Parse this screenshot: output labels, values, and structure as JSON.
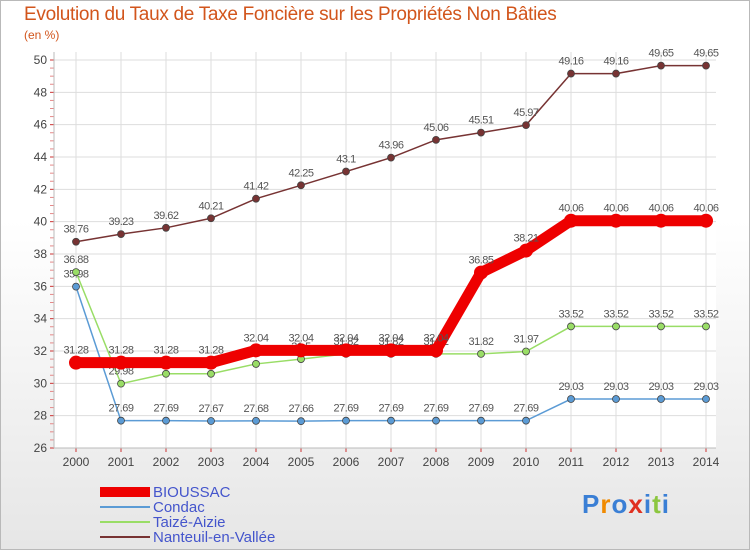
{
  "title": "Evolution du Taux de Taxe Foncière sur les Propriétés Non Bâties",
  "unit": "(en %)",
  "brand": {
    "text": "Proxiti",
    "colors": [
      "#3a7fd5",
      "#f08a00",
      "#3a7fd5",
      "#e03020",
      "#3a7fd5",
      "#8cc63f",
      "#3a7fd5"
    ]
  },
  "chart_data": {
    "type": "line",
    "title": "Evolution du Taux de Taxe Foncière sur les Propriétés Non Bâties",
    "ylabel": "(en %)",
    "xlabel": "",
    "x": [
      "2000",
      "2001",
      "2002",
      "2003",
      "2004",
      "2005",
      "2006",
      "2007",
      "2008",
      "2009",
      "2010",
      "2011",
      "2012",
      "2013",
      "2014"
    ],
    "ylim": [
      26,
      50
    ],
    "yticks": [
      26,
      28,
      30,
      32,
      34,
      36,
      38,
      40,
      42,
      44,
      46,
      48,
      50
    ],
    "grid": true,
    "legend": "bottom-left",
    "series": [
      {
        "name": "BIOUSSAC",
        "color": "#ee0000",
        "emphasis": true,
        "values": [
          31.28,
          31.28,
          31.28,
          31.28,
          32.04,
          32.04,
          32.04,
          32.04,
          32.04,
          36.85,
          38.21,
          40.06,
          40.06,
          40.06,
          40.06
        ],
        "labels": [
          "31.28",
          "31.28",
          "31.28",
          "31.28",
          "32.04",
          "32.04",
          "32.04",
          "32.04",
          "32.04",
          "36.85",
          "38.21",
          "40.06",
          "40.06",
          "40.06",
          "40.06"
        ]
      },
      {
        "name": "Condac",
        "color": "#5b9bd5",
        "values": [
          35.98,
          27.69,
          27.69,
          27.67,
          27.68,
          27.66,
          27.69,
          27.69,
          27.69,
          27.69,
          27.69,
          29.03,
          29.03,
          29.03,
          29.03
        ],
        "labels": [
          "35.98",
          "27.69",
          "27.69",
          "27.67",
          "27.68",
          "27.66",
          "27.69",
          "27.69",
          "27.69",
          "27.69",
          "27.69",
          "29.03",
          "29.03",
          "29.03",
          "29.03"
        ]
      },
      {
        "name": "Taizé-Aizie",
        "color": "#99dd66",
        "values": [
          36.88,
          29.98,
          30.59,
          30.59,
          31.2,
          31.5,
          31.82,
          31.82,
          31.82,
          31.82,
          31.97,
          33.52,
          33.52,
          33.52,
          33.52
        ],
        "labels": [
          "36.88",
          "29.98",
          "30.59",
          "30.59",
          "31.2",
          "31.5",
          "31.82",
          "31.82",
          "31.82",
          "31.82",
          "31.97",
          "33.52",
          "33.52",
          "33.52",
          "33.52"
        ]
      },
      {
        "name": "Nanteuil-en-Vallée",
        "color": "#773333",
        "values": [
          38.76,
          39.23,
          39.62,
          40.21,
          41.42,
          42.25,
          43.1,
          43.96,
          45.06,
          45.51,
          45.97,
          49.16,
          49.16,
          49.65,
          49.65
        ],
        "labels": [
          "38.76",
          "39.23",
          "39.62",
          "40.21",
          "41.42",
          "42.25",
          "43.1",
          "43.96",
          "45.06",
          "45.51",
          "45.97",
          "49.16",
          "49.16",
          "49.65",
          "49.65"
        ]
      }
    ]
  }
}
